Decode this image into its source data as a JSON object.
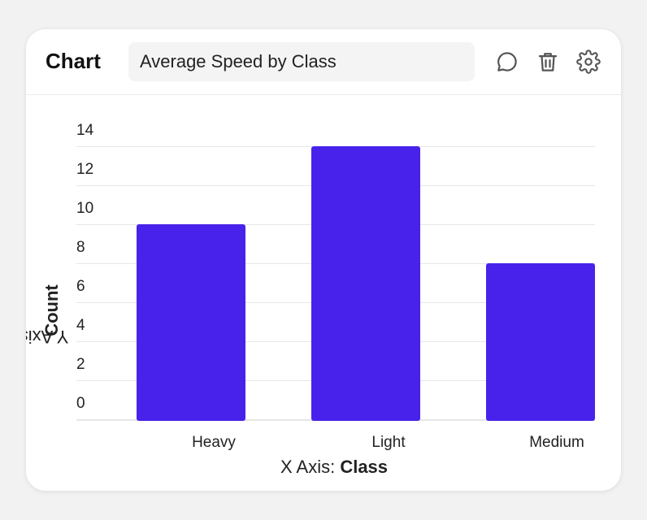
{
  "header": {
    "title": "Chart",
    "chart_title_value": "Average Speed by Class",
    "icons": [
      "comment-icon",
      "trash-icon",
      "gear-icon"
    ]
  },
  "axis": {
    "x_prefix": "X Axis: ",
    "x_field": "Class",
    "y_prefix": "Y Axis: ",
    "y_field": "Count"
  },
  "colors": {
    "bar": "#4822ea",
    "grid": "#e6e6e6",
    "background": "#f2f2f2"
  },
  "chart_data": {
    "type": "bar",
    "categories": [
      "Heavy",
      "Light",
      "Medium"
    ],
    "values": [
      10,
      14,
      8
    ],
    "xlabel": "Class",
    "ylabel": "Count",
    "ylim": [
      0,
      14
    ],
    "yticks": [
      0,
      2,
      4,
      6,
      8,
      10,
      12,
      14
    ],
    "grid": true
  }
}
